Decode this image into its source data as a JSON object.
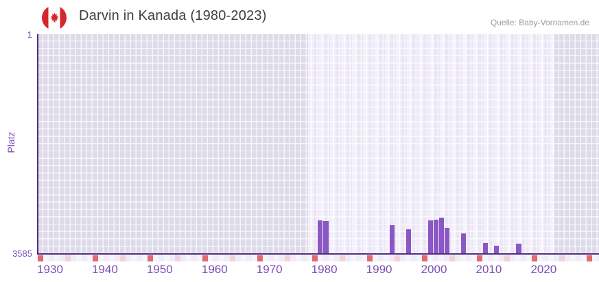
{
  "header": {
    "title": "Darvin in Kanada (1980-2023)",
    "source": "Quelle: Baby-Vornamen.de",
    "flag_icon": "canada-flag-icon"
  },
  "chart_data": {
    "type": "bar",
    "title": "Darvin in Kanada (1980-2023)",
    "xlabel": "",
    "ylabel": "Platz",
    "y_axis": {
      "min": 1,
      "max": 3585,
      "inverted": true,
      "top_tick_label": "1",
      "bottom_tick_label": "3585"
    },
    "x_axis": {
      "tick_labels": [
        "1930",
        "1940",
        "1950",
        "1960",
        "1970",
        "1980",
        "1990",
        "2000",
        "2010",
        "2020"
      ],
      "range_start": 1927,
      "range_end": 2030,
      "minor_tick_interval": 5,
      "major_tick_interval": 10
    },
    "highlight_range": {
      "start": 1980,
      "end": 2023
    },
    "series": [
      {
        "name": "Platz",
        "points": [
          {
            "year": 1980,
            "rank": 3048
          },
          {
            "year": 1981,
            "rank": 3059
          },
          {
            "year": 1993,
            "rank": 3122
          },
          {
            "year": 1996,
            "rank": 3188
          },
          {
            "year": 2000,
            "rank": 3045
          },
          {
            "year": 2001,
            "rank": 3033
          },
          {
            "year": 2002,
            "rank": 3001
          },
          {
            "year": 2003,
            "rank": 3167
          },
          {
            "year": 2006,
            "rank": 3260
          },
          {
            "year": 2010,
            "rank": 3413
          },
          {
            "year": 2012,
            "rank": 3467
          },
          {
            "year": 2016,
            "rank": 3426
          }
        ]
      }
    ],
    "legend": "none",
    "grid": true,
    "colors": {
      "bar": "#8a57c4",
      "axis_line": "#4e2b85",
      "axis_label": "#7d4fb6",
      "plot_background": "#dedbe9",
      "highlight_background_a": "#f3f0fb",
      "highlight_background_b": "#eae6f5",
      "gridline": "#ffffff",
      "decade_tick": "#e26971",
      "half_decade_tick": "#f2d2da",
      "title_text": "#3f3f3f",
      "source_text": "#9b9b9b",
      "flag_red": "#d3282e"
    }
  }
}
